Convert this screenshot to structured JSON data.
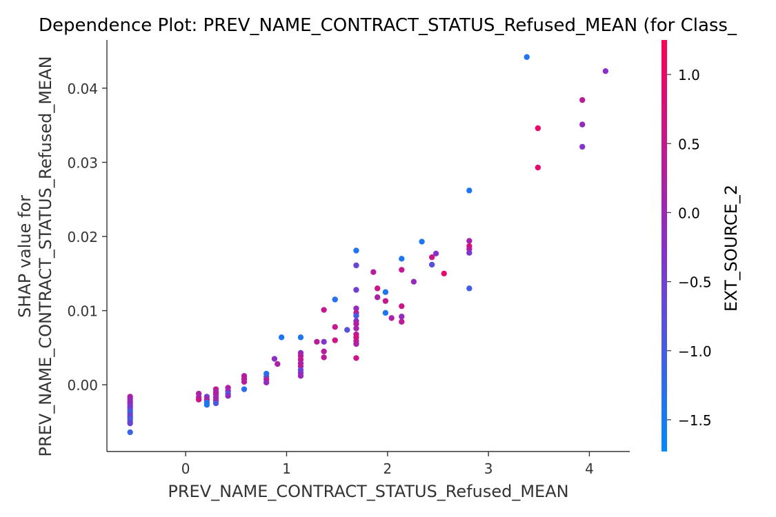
{
  "chart_data": {
    "type": "scatter",
    "title": "Dependence Plot: PREV_NAME_CONTRACT_STATUS_Refused_MEAN (for Class_",
    "xlabel": "PREV_NAME_CONTRACT_STATUS_Refused_MEAN",
    "ylabel_line1": "SHAP value for",
    "ylabel_line2": "PREV_NAME_CONTRACT_STATUS_Refused_MEAN",
    "xlim": [
      -0.78,
      4.4
    ],
    "ylim": [
      -0.009,
      0.0465
    ],
    "xticks": [
      0,
      1,
      2,
      3,
      4
    ],
    "xtick_labels": [
      "0",
      "1",
      "2",
      "3",
      "4"
    ],
    "yticks": [
      0.0,
      0.01,
      0.02,
      0.03,
      0.04
    ],
    "ytick_labels": [
      "0.00",
      "0.01",
      "0.02",
      "0.03",
      "0.04"
    ],
    "colorbar": {
      "label": "EXT_SOURCE_2",
      "range": [
        -1.73,
        1.25
      ],
      "ticks": [
        1.0,
        0.5,
        0.0,
        -0.5,
        -1.0,
        -1.5
      ],
      "tick_labels": [
        "1.0",
        "0.5",
        "0.0",
        "−0.5",
        "−1.0",
        "−1.5"
      ],
      "low_color": "#008afb",
      "mid_color": "#8a2fc9",
      "high_color": "#ff0052"
    },
    "grid": false,
    "points": [
      {
        "x": -0.55,
        "y": -0.0016,
        "c": 0.2
      },
      {
        "x": -0.55,
        "y": -0.0019,
        "c": 0.1
      },
      {
        "x": -0.55,
        "y": -0.0022,
        "c": -0.2
      },
      {
        "x": -0.55,
        "y": -0.0025,
        "c": 0.0
      },
      {
        "x": -0.55,
        "y": -0.0028,
        "c": -0.4
      },
      {
        "x": -0.55,
        "y": -0.0031,
        "c": -0.3
      },
      {
        "x": -0.55,
        "y": -0.0034,
        "c": -0.6
      },
      {
        "x": -0.55,
        "y": -0.0037,
        "c": -1.2
      },
      {
        "x": -0.55,
        "y": -0.004,
        "c": -0.7
      },
      {
        "x": -0.55,
        "y": -0.0043,
        "c": -0.5
      },
      {
        "x": -0.55,
        "y": -0.0046,
        "c": -1.0
      },
      {
        "x": -0.55,
        "y": -0.0049,
        "c": -0.9
      },
      {
        "x": -0.55,
        "y": -0.0052,
        "c": -0.6
      },
      {
        "x": -0.55,
        "y": -0.0064,
        "c": -1.1
      },
      {
        "x": 0.13,
        "y": -0.0012,
        "c": 0.2
      },
      {
        "x": 0.13,
        "y": -0.0017,
        "c": 0.0
      },
      {
        "x": 0.13,
        "y": -0.002,
        "c": 0.6
      },
      {
        "x": 0.21,
        "y": -0.0016,
        "c": -0.5
      },
      {
        "x": 0.21,
        "y": -0.002,
        "c": 0.3
      },
      {
        "x": 0.21,
        "y": -0.0024,
        "c": -1.3
      },
      {
        "x": 0.21,
        "y": -0.0027,
        "c": -1.4
      },
      {
        "x": 0.3,
        "y": -0.0006,
        "c": 0.4
      },
      {
        "x": 0.3,
        "y": -0.001,
        "c": 0.1
      },
      {
        "x": 0.3,
        "y": -0.0013,
        "c": 0.3
      },
      {
        "x": 0.3,
        "y": -0.0017,
        "c": 0.0
      },
      {
        "x": 0.3,
        "y": -0.0021,
        "c": 0.2
      },
      {
        "x": 0.3,
        "y": -0.0025,
        "c": -0.9
      },
      {
        "x": 0.42,
        "y": -0.0004,
        "c": 0.3
      },
      {
        "x": 0.42,
        "y": -0.0008,
        "c": 0.0
      },
      {
        "x": 0.42,
        "y": -0.0012,
        "c": -1.0
      },
      {
        "x": 0.42,
        "y": -0.0015,
        "c": -0.1
      },
      {
        "x": 0.58,
        "y": 0.0012,
        "c": 0.2
      },
      {
        "x": 0.58,
        "y": 0.0008,
        "c": 0.4
      },
      {
        "x": 0.58,
        "y": 0.0004,
        "c": 0.3
      },
      {
        "x": 0.58,
        "y": -0.0006,
        "c": -1.3
      },
      {
        "x": 0.8,
        "y": 0.0015,
        "c": -1.4
      },
      {
        "x": 0.8,
        "y": 0.0011,
        "c": -1.0
      },
      {
        "x": 0.8,
        "y": 0.0007,
        "c": 0.4
      },
      {
        "x": 0.8,
        "y": 0.0003,
        "c": -0.1
      },
      {
        "x": 0.88,
        "y": 0.0035,
        "c": -0.2
      },
      {
        "x": 0.91,
        "y": 0.0028,
        "c": 0.2
      },
      {
        "x": 0.95,
        "y": 0.0064,
        "c": -1.4
      },
      {
        "x": 1.14,
        "y": 0.0064,
        "c": -1.4
      },
      {
        "x": 1.14,
        "y": 0.0043,
        "c": -0.1
      },
      {
        "x": 1.14,
        "y": 0.0039,
        "c": 0.3
      },
      {
        "x": 1.14,
        "y": 0.0034,
        "c": 0.5
      },
      {
        "x": 1.14,
        "y": 0.0029,
        "c": 0.1
      },
      {
        "x": 1.14,
        "y": 0.0025,
        "c": 0.4
      },
      {
        "x": 1.14,
        "y": 0.002,
        "c": -0.6
      },
      {
        "x": 1.14,
        "y": 0.0016,
        "c": -0.3
      },
      {
        "x": 1.14,
        "y": 0.0012,
        "c": 0.0
      },
      {
        "x": 1.3,
        "y": 0.0058,
        "c": 0.4
      },
      {
        "x": 1.37,
        "y": 0.0101,
        "c": 0.5
      },
      {
        "x": 1.37,
        "y": 0.0058,
        "c": -0.3
      },
      {
        "x": 1.37,
        "y": 0.0045,
        "c": 0.3
      },
      {
        "x": 1.37,
        "y": 0.0037,
        "c": 0.4
      },
      {
        "x": 1.48,
        "y": 0.0115,
        "c": -1.3
      },
      {
        "x": 1.48,
        "y": 0.0078,
        "c": 0.5
      },
      {
        "x": 1.48,
        "y": 0.006,
        "c": 0.6
      },
      {
        "x": 1.6,
        "y": 0.0074,
        "c": -0.8
      },
      {
        "x": 1.69,
        "y": 0.0181,
        "c": -1.4
      },
      {
        "x": 1.69,
        "y": 0.0161,
        "c": -0.6
      },
      {
        "x": 1.69,
        "y": 0.0128,
        "c": -0.5
      },
      {
        "x": 1.69,
        "y": 0.0103,
        "c": -0.1
      },
      {
        "x": 1.69,
        "y": 0.0097,
        "c": 0.4
      },
      {
        "x": 1.69,
        "y": 0.0093,
        "c": -1.0
      },
      {
        "x": 1.69,
        "y": 0.0086,
        "c": -0.2
      },
      {
        "x": 1.69,
        "y": 0.0082,
        "c": 0.3
      },
      {
        "x": 1.69,
        "y": 0.0076,
        "c": 0.1
      },
      {
        "x": 1.69,
        "y": 0.0068,
        "c": 0.4
      },
      {
        "x": 1.69,
        "y": 0.0064,
        "c": 0.7
      },
      {
        "x": 1.69,
        "y": 0.0059,
        "c": 0.5
      },
      {
        "x": 1.69,
        "y": 0.0055,
        "c": 0.2
      },
      {
        "x": 1.69,
        "y": 0.0036,
        "c": 0.6
      },
      {
        "x": 1.86,
        "y": 0.0152,
        "c": 0.3
      },
      {
        "x": 1.9,
        "y": 0.013,
        "c": 0.6
      },
      {
        "x": 1.9,
        "y": 0.0118,
        "c": 0.2
      },
      {
        "x": 1.98,
        "y": 0.0125,
        "c": -1.4
      },
      {
        "x": 1.98,
        "y": 0.0113,
        "c": 0.5
      },
      {
        "x": 1.98,
        "y": 0.0097,
        "c": -1.4
      },
      {
        "x": 2.04,
        "y": 0.009,
        "c": 0.2
      },
      {
        "x": 2.14,
        "y": 0.017,
        "c": -1.4
      },
      {
        "x": 2.14,
        "y": 0.0155,
        "c": 0.5
      },
      {
        "x": 2.14,
        "y": 0.0106,
        "c": 0.6
      },
      {
        "x": 2.14,
        "y": 0.0092,
        "c": -0.1
      },
      {
        "x": 2.14,
        "y": 0.0085,
        "c": 0.4
      },
      {
        "x": 2.26,
        "y": 0.0139,
        "c": -0.1
      },
      {
        "x": 2.34,
        "y": 0.0193,
        "c": -1.4
      },
      {
        "x": 2.44,
        "y": 0.0172,
        "c": 0.6
      },
      {
        "x": 2.44,
        "y": 0.0162,
        "c": -0.8
      },
      {
        "x": 2.48,
        "y": 0.0177,
        "c": -0.3
      },
      {
        "x": 2.56,
        "y": 0.015,
        "c": 0.9
      },
      {
        "x": 2.81,
        "y": 0.0262,
        "c": -1.4
      },
      {
        "x": 2.81,
        "y": 0.0194,
        "c": 0.1
      },
      {
        "x": 2.81,
        "y": 0.0187,
        "c": 0.7
      },
      {
        "x": 2.81,
        "y": 0.0183,
        "c": 0.3
      },
      {
        "x": 2.81,
        "y": 0.0178,
        "c": -0.4
      },
      {
        "x": 2.81,
        "y": 0.013,
        "c": -1.0
      },
      {
        "x": 3.38,
        "y": 0.0442,
        "c": -1.4
      },
      {
        "x": 3.49,
        "y": 0.0346,
        "c": 1.0
      },
      {
        "x": 3.49,
        "y": 0.0293,
        "c": 0.9
      },
      {
        "x": 3.93,
        "y": 0.0384,
        "c": 0.4
      },
      {
        "x": 3.93,
        "y": 0.0351,
        "c": -0.1
      },
      {
        "x": 3.93,
        "y": 0.0321,
        "c": -0.3
      },
      {
        "x": 4.16,
        "y": 0.0423,
        "c": -0.2
      }
    ]
  }
}
